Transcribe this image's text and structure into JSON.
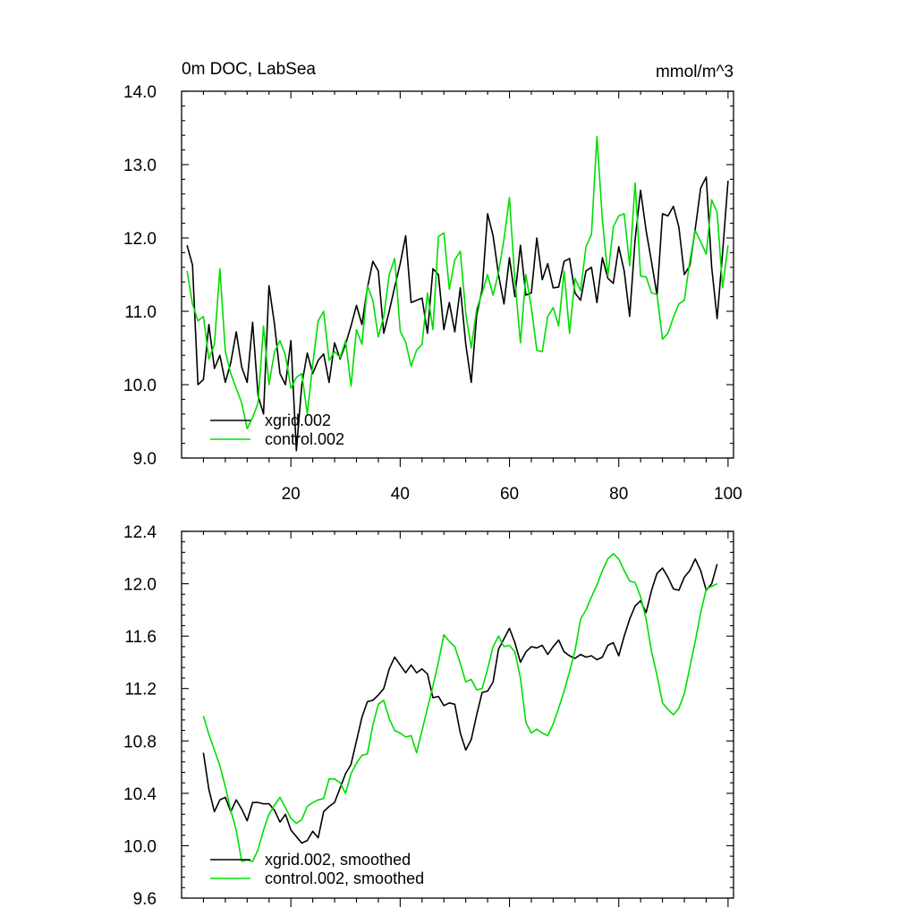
{
  "chart_data": [
    {
      "type": "line",
      "title_left": "0m DOC, LabSea",
      "title_right": "mmol/m^3",
      "xlabel": "",
      "ylabel": "",
      "xlim": [
        0,
        101
      ],
      "ylim": [
        9.0,
        14.0
      ],
      "xticks": [
        20,
        40,
        60,
        80,
        100
      ],
      "yticks": [
        9.0,
        10.0,
        11.0,
        12.0,
        13.0,
        14.0
      ],
      "ytick_labels": [
        "9.0",
        "10.0",
        "11.0",
        "12.0",
        "13.0",
        "14.0"
      ],
      "xtick_labels": [
        "20",
        "40",
        "60",
        "80",
        "100"
      ],
      "legend_position": "bottom-left",
      "series": [
        {
          "name": "xgrid.002",
          "color": "#000000",
          "x": [
            1,
            2,
            3,
            4,
            5,
            6,
            7,
            8,
            9,
            10,
            11,
            12,
            13,
            14,
            15,
            16,
            17,
            18,
            19,
            20,
            21,
            22,
            23,
            24,
            25,
            26,
            27,
            28,
            29,
            30,
            31,
            32,
            33,
            34,
            35,
            36,
            37,
            38,
            39,
            40,
            41,
            42,
            43,
            44,
            45,
            46,
            47,
            48,
            49,
            50,
            51,
            52,
            53,
            54,
            55,
            56,
            57,
            58,
            59,
            60,
            61,
            62,
            63,
            64,
            65,
            66,
            67,
            68,
            69,
            70,
            71,
            72,
            73,
            74,
            75,
            76,
            77,
            78,
            79,
            80,
            81,
            82,
            83,
            84,
            85,
            86,
            87,
            88,
            89,
            90,
            91,
            92,
            93,
            94,
            95,
            96,
            97,
            98,
            99,
            100
          ],
          "values": [
            11.9,
            11.63,
            10.0,
            10.07,
            10.82,
            10.22,
            10.4,
            10.03,
            10.3,
            10.72,
            10.24,
            10.03,
            10.85,
            9.85,
            9.6,
            11.35,
            10.82,
            10.15,
            10.0,
            10.6,
            9.1,
            10.0,
            10.43,
            10.15,
            10.33,
            10.42,
            10.03,
            10.57,
            10.35,
            10.55,
            10.8,
            11.08,
            10.82,
            11.32,
            11.68,
            11.55,
            10.7,
            11.0,
            11.33,
            11.65,
            12.03,
            11.12,
            11.15,
            11.18,
            10.7,
            11.58,
            11.5,
            10.75,
            11.12,
            10.72,
            11.32,
            10.55,
            10.03,
            10.95,
            11.3,
            12.33,
            12.03,
            11.5,
            11.1,
            11.73,
            11.2,
            11.9,
            11.22,
            11.25,
            12.0,
            11.43,
            11.65,
            11.32,
            11.33,
            11.68,
            11.72,
            11.25,
            11.15,
            11.55,
            11.6,
            11.12,
            11.73,
            11.45,
            11.38,
            11.88,
            11.55,
            10.93,
            11.98,
            12.65,
            12.1,
            11.67,
            11.22,
            12.33,
            12.3,
            12.43,
            12.15,
            11.5,
            11.62,
            12.12,
            12.68,
            12.83,
            11.6,
            10.9,
            11.8,
            12.78
          ]
        },
        {
          "name": "control.002",
          "color": "#00dd00",
          "x": [
            1,
            2,
            3,
            4,
            5,
            6,
            7,
            8,
            9,
            10,
            11,
            12,
            13,
            14,
            15,
            16,
            17,
            18,
            19,
            20,
            21,
            22,
            23,
            24,
            25,
            26,
            27,
            28,
            29,
            30,
            31,
            32,
            33,
            34,
            35,
            36,
            37,
            38,
            39,
            40,
            41,
            42,
            43,
            44,
            45,
            46,
            47,
            48,
            49,
            50,
            51,
            52,
            53,
            54,
            55,
            56,
            57,
            58,
            59,
            60,
            61,
            62,
            63,
            64,
            65,
            66,
            67,
            68,
            69,
            70,
            71,
            72,
            73,
            74,
            75,
            76,
            77,
            78,
            79,
            80,
            81,
            82,
            83,
            84,
            85,
            86,
            87,
            88,
            89,
            90,
            91,
            92,
            93,
            94,
            95,
            96,
            97,
            98,
            99,
            100
          ],
          "values": [
            11.55,
            11.1,
            10.87,
            10.93,
            10.35,
            10.55,
            11.58,
            10.45,
            10.15,
            9.95,
            9.75,
            9.4,
            9.55,
            9.75,
            10.8,
            10.0,
            10.45,
            10.6,
            10.4,
            9.95,
            10.1,
            10.15,
            9.6,
            10.28,
            10.87,
            11.0,
            10.33,
            10.45,
            10.37,
            10.6,
            9.98,
            10.75,
            10.55,
            11.35,
            11.15,
            10.65,
            10.93,
            11.5,
            11.72,
            10.73,
            10.58,
            10.25,
            10.47,
            10.55,
            11.25,
            10.75,
            12.02,
            12.07,
            11.3,
            11.7,
            11.82,
            10.97,
            10.5,
            11.03,
            11.25,
            11.5,
            11.22,
            11.53,
            11.98,
            12.55,
            11.42,
            10.57,
            11.5,
            11.05,
            10.47,
            10.45,
            10.93,
            11.05,
            10.8,
            11.55,
            10.7,
            11.45,
            11.28,
            11.88,
            12.05,
            13.38,
            12.25,
            11.48,
            12.15,
            12.3,
            12.33,
            11.62,
            12.75,
            11.48,
            11.47,
            11.25,
            11.23,
            10.62,
            10.7,
            10.92,
            11.1,
            11.15,
            11.68,
            12.1,
            11.95,
            11.78,
            12.52,
            12.35,
            11.32,
            11.9
          ]
        }
      ]
    },
    {
      "type": "line",
      "title_left": "",
      "title_right": "",
      "xlabel": "",
      "ylabel": "",
      "xlim": [
        0,
        101
      ],
      "ylim": [
        9.6,
        12.4
      ],
      "xticks": [
        20,
        40,
        60,
        80,
        100
      ],
      "yticks": [
        9.6,
        10.0,
        10.4,
        10.8,
        11.2,
        11.6,
        12.0,
        12.4
      ],
      "ytick_labels": [
        "9.6",
        "10.0",
        "10.4",
        "10.8",
        "11.2",
        "11.6",
        "12.0",
        "12.4"
      ],
      "xtick_labels": [],
      "legend_position": "bottom-left",
      "series": [
        {
          "name": "xgrid.002, smoothed",
          "color": "#000000",
          "x": [
            4,
            5,
            6,
            7,
            8,
            9,
            10,
            11,
            12,
            13,
            14,
            15,
            16,
            17,
            18,
            19,
            20,
            21,
            22,
            23,
            24,
            25,
            26,
            27,
            28,
            29,
            30,
            31,
            32,
            33,
            34,
            35,
            36,
            37,
            38,
            39,
            40,
            41,
            42,
            43,
            44,
            45,
            46,
            47,
            48,
            49,
            50,
            51,
            52,
            53,
            54,
            55,
            56,
            57,
            58,
            59,
            60,
            61,
            62,
            63,
            64,
            65,
            66,
            67,
            68,
            69,
            70,
            71,
            72,
            73,
            74,
            75,
            76,
            77,
            78,
            79,
            80,
            81,
            82,
            83,
            84,
            85,
            86,
            87,
            88,
            89,
            90,
            91,
            92,
            93,
            94,
            95,
            96,
            97,
            98
          ],
          "values": [
            10.71,
            10.43,
            10.26,
            10.35,
            10.37,
            10.26,
            10.35,
            10.28,
            10.19,
            10.33,
            10.33,
            10.32,
            10.32,
            10.27,
            10.18,
            10.24,
            10.12,
            10.07,
            10.02,
            10.04,
            10.11,
            10.06,
            10.26,
            10.3,
            10.33,
            10.44,
            10.55,
            10.62,
            10.8,
            10.98,
            11.1,
            11.11,
            11.15,
            11.2,
            11.35,
            11.44,
            11.38,
            11.32,
            11.38,
            11.32,
            11.35,
            11.31,
            11.13,
            11.14,
            11.07,
            11.09,
            11.08,
            10.86,
            10.73,
            10.81,
            11.0,
            11.17,
            11.18,
            11.25,
            11.5,
            11.58,
            11.66,
            11.55,
            11.4,
            11.48,
            11.52,
            11.51,
            11.53,
            11.46,
            11.52,
            11.57,
            11.48,
            11.45,
            11.43,
            11.46,
            11.44,
            11.45,
            11.42,
            11.44,
            11.53,
            11.55,
            11.45,
            11.6,
            11.73,
            11.83,
            11.87,
            11.78,
            11.95,
            12.08,
            12.12,
            12.05,
            11.96,
            11.95,
            12.05,
            12.1,
            12.19,
            12.1,
            11.95,
            12.0,
            12.15
          ]
        },
        {
          "name": "control.002, smoothed",
          "color": "#00dd00",
          "x": [
            4,
            5,
            6,
            7,
            8,
            9,
            10,
            11,
            12,
            13,
            14,
            15,
            16,
            17,
            18,
            19,
            20,
            21,
            22,
            23,
            24,
            25,
            26,
            27,
            28,
            29,
            30,
            31,
            32,
            33,
            34,
            35,
            36,
            37,
            38,
            39,
            40,
            41,
            42,
            43,
            44,
            45,
            46,
            47,
            48,
            49,
            50,
            51,
            52,
            53,
            54,
            55,
            56,
            57,
            58,
            59,
            60,
            61,
            62,
            63,
            64,
            65,
            66,
            67,
            68,
            69,
            70,
            71,
            72,
            73,
            74,
            75,
            76,
            77,
            78,
            79,
            80,
            81,
            82,
            83,
            84,
            85,
            86,
            87,
            88,
            89,
            90,
            91,
            92,
            93,
            94,
            95,
            96,
            97,
            98
          ],
          "values": [
            10.99,
            10.85,
            10.73,
            10.61,
            10.45,
            10.27,
            10.12,
            9.88,
            9.89,
            9.88,
            9.97,
            10.12,
            10.24,
            10.31,
            10.37,
            10.29,
            10.21,
            10.17,
            10.2,
            10.3,
            10.33,
            10.35,
            10.36,
            10.51,
            10.51,
            10.48,
            10.4,
            10.55,
            10.63,
            10.69,
            10.7,
            10.92,
            11.08,
            11.11,
            10.97,
            10.88,
            10.86,
            10.83,
            10.84,
            10.71,
            10.88,
            11.05,
            11.22,
            11.4,
            11.61,
            11.56,
            11.52,
            11.39,
            11.25,
            11.27,
            11.19,
            11.2,
            11.35,
            11.52,
            11.6,
            11.52,
            11.53,
            11.48,
            11.28,
            10.94,
            10.86,
            10.89,
            10.86,
            10.84,
            10.93,
            11.05,
            11.18,
            11.33,
            11.49,
            11.73,
            11.8,
            11.9,
            11.99,
            12.1,
            12.19,
            12.23,
            12.19,
            12.1,
            12.02,
            12.01,
            11.9,
            11.73,
            11.48,
            11.3,
            11.09,
            11.04,
            11.0,
            11.05,
            11.16,
            11.36,
            11.56,
            11.78,
            11.96,
            11.98,
            12.0
          ]
        }
      ]
    }
  ]
}
